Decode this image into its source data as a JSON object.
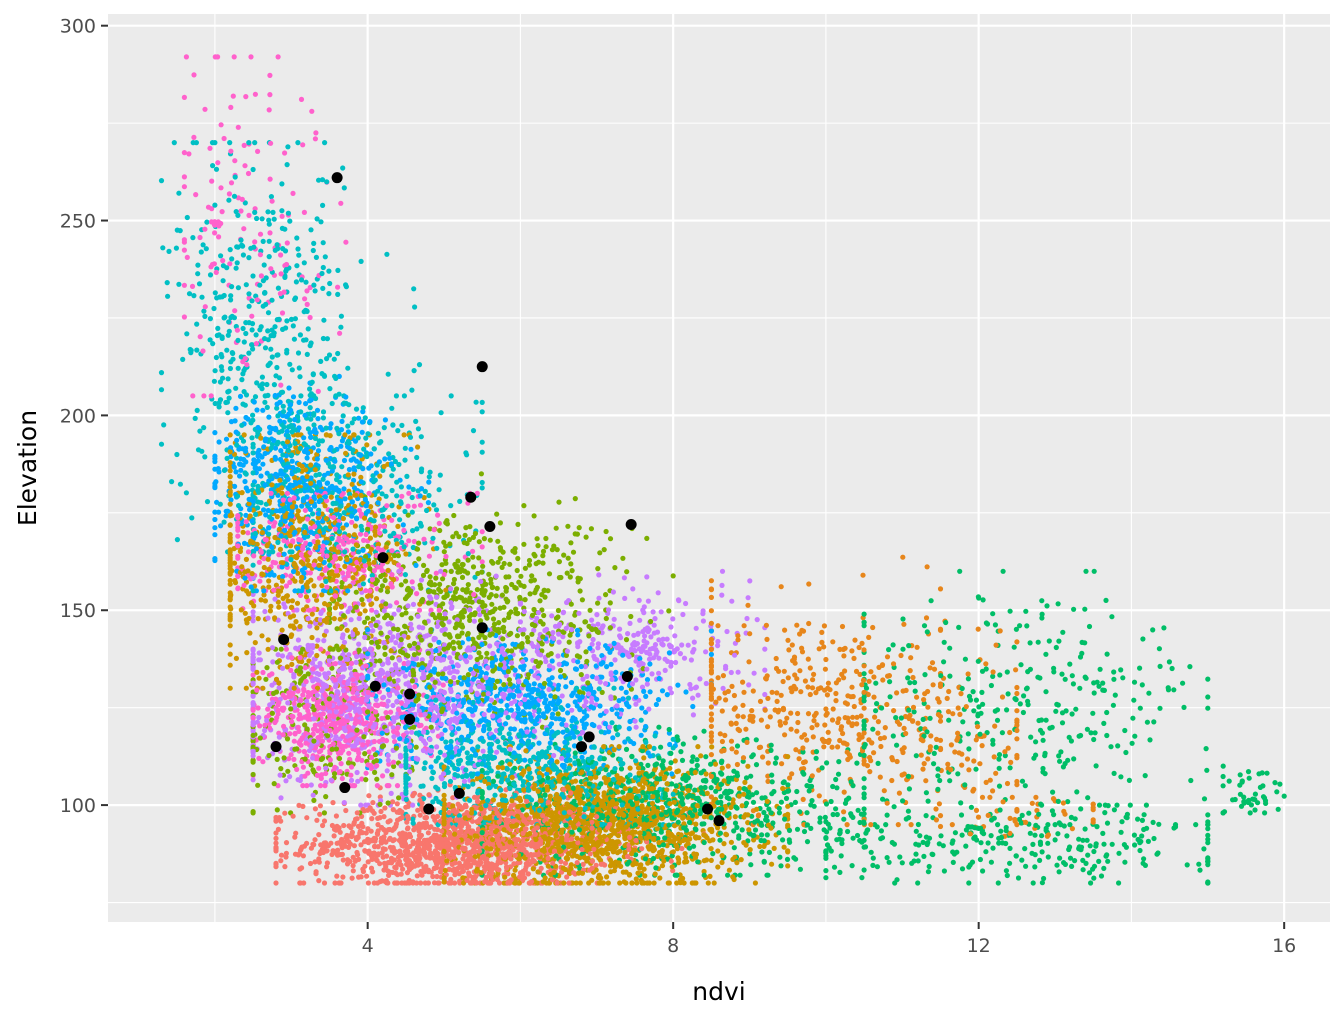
{
  "chart_data": {
    "type": "scatter",
    "title": "",
    "xlabel": "ndvi",
    "ylabel": "Elevation",
    "xlim": [
      0.6,
      16.6
    ],
    "ylim": [
      70,
      303
    ],
    "x_ticks": [
      4,
      8,
      12,
      16
    ],
    "y_ticks": [
      100,
      150,
      200,
      250,
      300
    ],
    "x_tick_labels": [
      "4",
      "8",
      "12",
      "16"
    ],
    "y_tick_labels": [
      "100",
      "150",
      "200",
      "250",
      "300"
    ],
    "grid": true,
    "legend": "none",
    "background_color": "#ebebeb",
    "grid_color": "#ffffff",
    "series_colors": [
      "#f8766d",
      "#cd9600",
      "#7cae00",
      "#00be67",
      "#00bfc4",
      "#00a9ff",
      "#c77cff",
      "#ff61cc",
      "#e7861b",
      "#0cb702",
      "#8494ff",
      "#1fb4e9"
    ],
    "highlight_color": "#000000",
    "clusters": [
      {
        "color": "#f8766d",
        "cx": 5.2,
        "cy": 90,
        "sx": 1.0,
        "sy": 6,
        "n": 1300,
        "xmin": 2.8,
        "xmax": 8.5,
        "ymin": 80,
        "ymax": 108
      },
      {
        "color": "#cd9600",
        "cx": 7.0,
        "cy": 95,
        "sx": 1.0,
        "sy": 8,
        "n": 1400,
        "xmin": 5.0,
        "xmax": 9.5,
        "ymin": 80,
        "ymax": 115
      },
      {
        "color": "#cd9600",
        "cx": 3.2,
        "cy": 163,
        "sx": 0.7,
        "sy": 15,
        "n": 600,
        "xmin": 2.2,
        "xmax": 5.5,
        "ymin": 130,
        "ymax": 195
      },
      {
        "color": "#00be67",
        "cx": 8.0,
        "cy": 100,
        "sx": 1.2,
        "sy": 8,
        "n": 700,
        "xmin": 5.5,
        "xmax": 10.5,
        "ymin": 82,
        "ymax": 120
      },
      {
        "color": "#00be67",
        "cx": 12.5,
        "cy": 125,
        "sx": 1.3,
        "sy": 15,
        "n": 330,
        "xmin": 10.5,
        "xmax": 15.0,
        "ymin": 95,
        "ymax": 160
      },
      {
        "color": "#00be67",
        "cx": 12.5,
        "cy": 90,
        "sx": 1.5,
        "sy": 5,
        "n": 280,
        "xmin": 10.0,
        "xmax": 15.0,
        "ymin": 80,
        "ymax": 100
      },
      {
        "color": "#00be67",
        "cx": 15.6,
        "cy": 103,
        "sx": 0.25,
        "sy": 4,
        "n": 45,
        "xmin": 15.2,
        "xmax": 16.0,
        "ymin": 98,
        "ymax": 110
      },
      {
        "color": "#e7861b",
        "cx": 9.8,
        "cy": 125,
        "sx": 0.9,
        "sy": 14,
        "n": 380,
        "xmin": 8.5,
        "xmax": 11.5,
        "ymin": 95,
        "ymax": 170
      },
      {
        "color": "#e7861b",
        "cx": 11.6,
        "cy": 118,
        "sx": 0.7,
        "sy": 13,
        "n": 140,
        "xmin": 10.5,
        "xmax": 12.5,
        "ymin": 95,
        "ymax": 150
      },
      {
        "color": "#e7861b",
        "cx": 12.5,
        "cy": 98,
        "sx": 0.6,
        "sy": 3,
        "n": 40,
        "xmin": 11.5,
        "xmax": 13.5,
        "ymin": 92,
        "ymax": 102
      },
      {
        "color": "#7cae00",
        "cx": 5.3,
        "cy": 150,
        "sx": 1.0,
        "sy": 12,
        "n": 700,
        "xmin": 3.5,
        "xmax": 8.0,
        "ymin": 120,
        "ymax": 185
      },
      {
        "color": "#7cae00",
        "cx": 3.5,
        "cy": 120,
        "sx": 0.7,
        "sy": 12,
        "n": 200,
        "xmin": 2.5,
        "xmax": 5.0,
        "ymin": 98,
        "ymax": 140
      },
      {
        "color": "#00bfc4",
        "cx": 2.7,
        "cy": 215,
        "sx": 0.6,
        "sy": 25,
        "n": 500,
        "xmin": 1.3,
        "xmax": 4.8,
        "ymin": 165,
        "ymax": 270
      },
      {
        "color": "#00bfc4",
        "cx": 3.8,
        "cy": 180,
        "sx": 0.8,
        "sy": 12,
        "n": 300,
        "xmin": 2.5,
        "xmax": 5.5,
        "ymin": 155,
        "ymax": 205
      },
      {
        "color": "#00bfc4",
        "cx": 6.0,
        "cy": 110,
        "sx": 0.9,
        "sy": 8,
        "n": 500,
        "xmin": 4.5,
        "xmax": 8.0,
        "ymin": 95,
        "ymax": 130
      },
      {
        "color": "#00a9ff",
        "cx": 3.1,
        "cy": 182,
        "sx": 0.6,
        "sy": 12,
        "n": 500,
        "xmin": 2.0,
        "xmax": 4.8,
        "ymin": 155,
        "ymax": 210
      },
      {
        "color": "#00a9ff",
        "cx": 6.0,
        "cy": 125,
        "sx": 1.0,
        "sy": 8,
        "n": 600,
        "xmin": 4.0,
        "xmax": 8.5,
        "ymin": 108,
        "ymax": 145
      },
      {
        "color": "#c77cff",
        "cx": 4.3,
        "cy": 130,
        "sx": 1.0,
        "sy": 12,
        "n": 900,
        "xmin": 2.5,
        "xmax": 7.0,
        "ymin": 100,
        "ymax": 160
      },
      {
        "color": "#c77cff",
        "cx": 7.5,
        "cy": 140,
        "sx": 0.8,
        "sy": 8,
        "n": 300,
        "xmin": 6.0,
        "xmax": 9.2,
        "ymin": 120,
        "ymax": 160
      },
      {
        "color": "#ff61cc",
        "cx": 2.4,
        "cy": 250,
        "sx": 0.5,
        "sy": 22,
        "n": 140,
        "xmin": 1.6,
        "xmax": 4.0,
        "ymin": 205,
        "ymax": 292
      },
      {
        "color": "#ff61cc",
        "cx": 3.6,
        "cy": 122,
        "sx": 0.5,
        "sy": 8,
        "n": 500,
        "xmin": 2.5,
        "xmax": 5.0,
        "ymin": 105,
        "ymax": 140
      },
      {
        "color": "#ff61cc",
        "cx": 3.5,
        "cy": 165,
        "sx": 0.8,
        "sy": 8,
        "n": 300,
        "xmin": 2.3,
        "xmax": 5.5,
        "ymin": 150,
        "ymax": 180
      }
    ],
    "highlight_points": [
      {
        "x": 3.6,
        "y": 261
      },
      {
        "x": 5.5,
        "y": 212.5
      },
      {
        "x": 5.35,
        "y": 179
      },
      {
        "x": 5.6,
        "y": 171.5
      },
      {
        "x": 7.45,
        "y": 172
      },
      {
        "x": 4.2,
        "y": 163.5
      },
      {
        "x": 5.5,
        "y": 145.5
      },
      {
        "x": 2.9,
        "y": 142.5
      },
      {
        "x": 7.4,
        "y": 133
      },
      {
        "x": 4.1,
        "y": 130.5
      },
      {
        "x": 4.55,
        "y": 128.5
      },
      {
        "x": 4.55,
        "y": 122
      },
      {
        "x": 6.9,
        "y": 117.5
      },
      {
        "x": 6.8,
        "y": 115
      },
      {
        "x": 2.8,
        "y": 115
      },
      {
        "x": 3.7,
        "y": 104.5
      },
      {
        "x": 5.2,
        "y": 103
      },
      {
        "x": 4.8,
        "y": 99
      },
      {
        "x": 8.45,
        "y": 99
      },
      {
        "x": 8.6,
        "y": 96
      }
    ]
  }
}
